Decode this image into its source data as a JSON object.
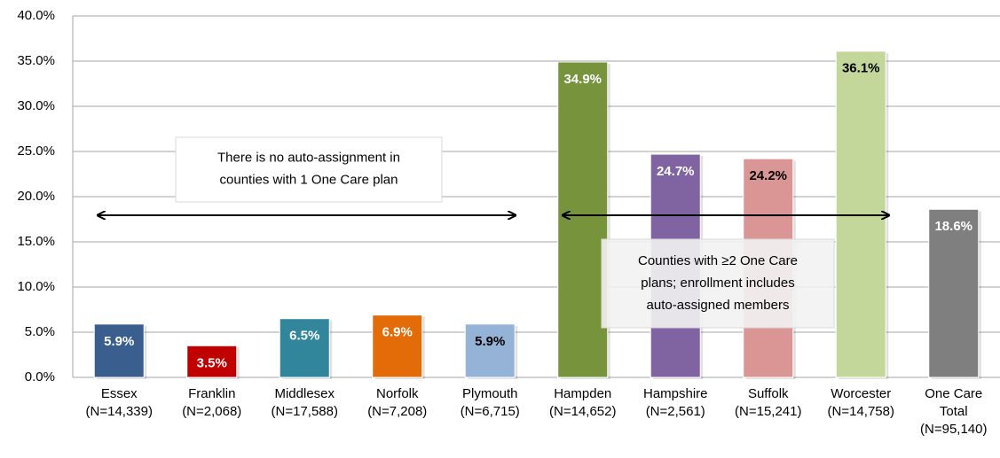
{
  "chart_data": {
    "type": "bar",
    "categories": [
      [
        "Essex",
        "(N=14,339)"
      ],
      [
        "Franklin",
        "(N=2,068)"
      ],
      [
        "Middlesex",
        "(N=17,588)"
      ],
      [
        "Norfolk",
        "(N=7,208)"
      ],
      [
        "Plymouth",
        "(N=6,715)"
      ],
      [
        "Hampden",
        "(N=14,652)"
      ],
      [
        "Hampshire",
        "(N=2,561)"
      ],
      [
        "Suffolk",
        "(N=15,241)"
      ],
      [
        "Worcester",
        "(N=14,758)"
      ],
      [
        "One Care",
        "Total",
        "(N=95,140)"
      ]
    ],
    "values": [
      5.9,
      3.5,
      6.5,
      6.9,
      5.9,
      34.9,
      24.7,
      24.2,
      36.1,
      18.6
    ],
    "value_labels": [
      "5.9%",
      "3.5%",
      "6.5%",
      "6.9%",
      "5.9%",
      "34.9%",
      "24.7%",
      "24.2%",
      "36.1%",
      "18.6%"
    ],
    "colors": [
      "#3a5f8f",
      "#c00000",
      "#31869b",
      "#e36c09",
      "#95b3d7",
      "#77933c",
      "#8064a2",
      "#da9694",
      "#c4d79b",
      "#7f7f7f"
    ],
    "ylim": [
      0,
      40
    ],
    "yticks": [
      {
        "value": 0,
        "label": "0.0%"
      },
      {
        "value": 5,
        "label": "5.0%"
      },
      {
        "value": 10,
        "label": "10.0%"
      },
      {
        "value": 15,
        "label": "15.0%"
      },
      {
        "value": 20,
        "label": "20.0%"
      },
      {
        "value": 25,
        "label": "25.0%"
      },
      {
        "value": 30,
        "label": "30.0%"
      },
      {
        "value": 35,
        "label": "35.0%"
      },
      {
        "value": 40,
        "label": "40.0%"
      }
    ],
    "grid": true,
    "annotations": [
      [
        "There is no auto-assignment in",
        "counties with 1 One Care plan"
      ],
      [
        "Counties with ≥2 One Care",
        "plans; enrollment includes",
        "auto-assigned members"
      ]
    ]
  }
}
